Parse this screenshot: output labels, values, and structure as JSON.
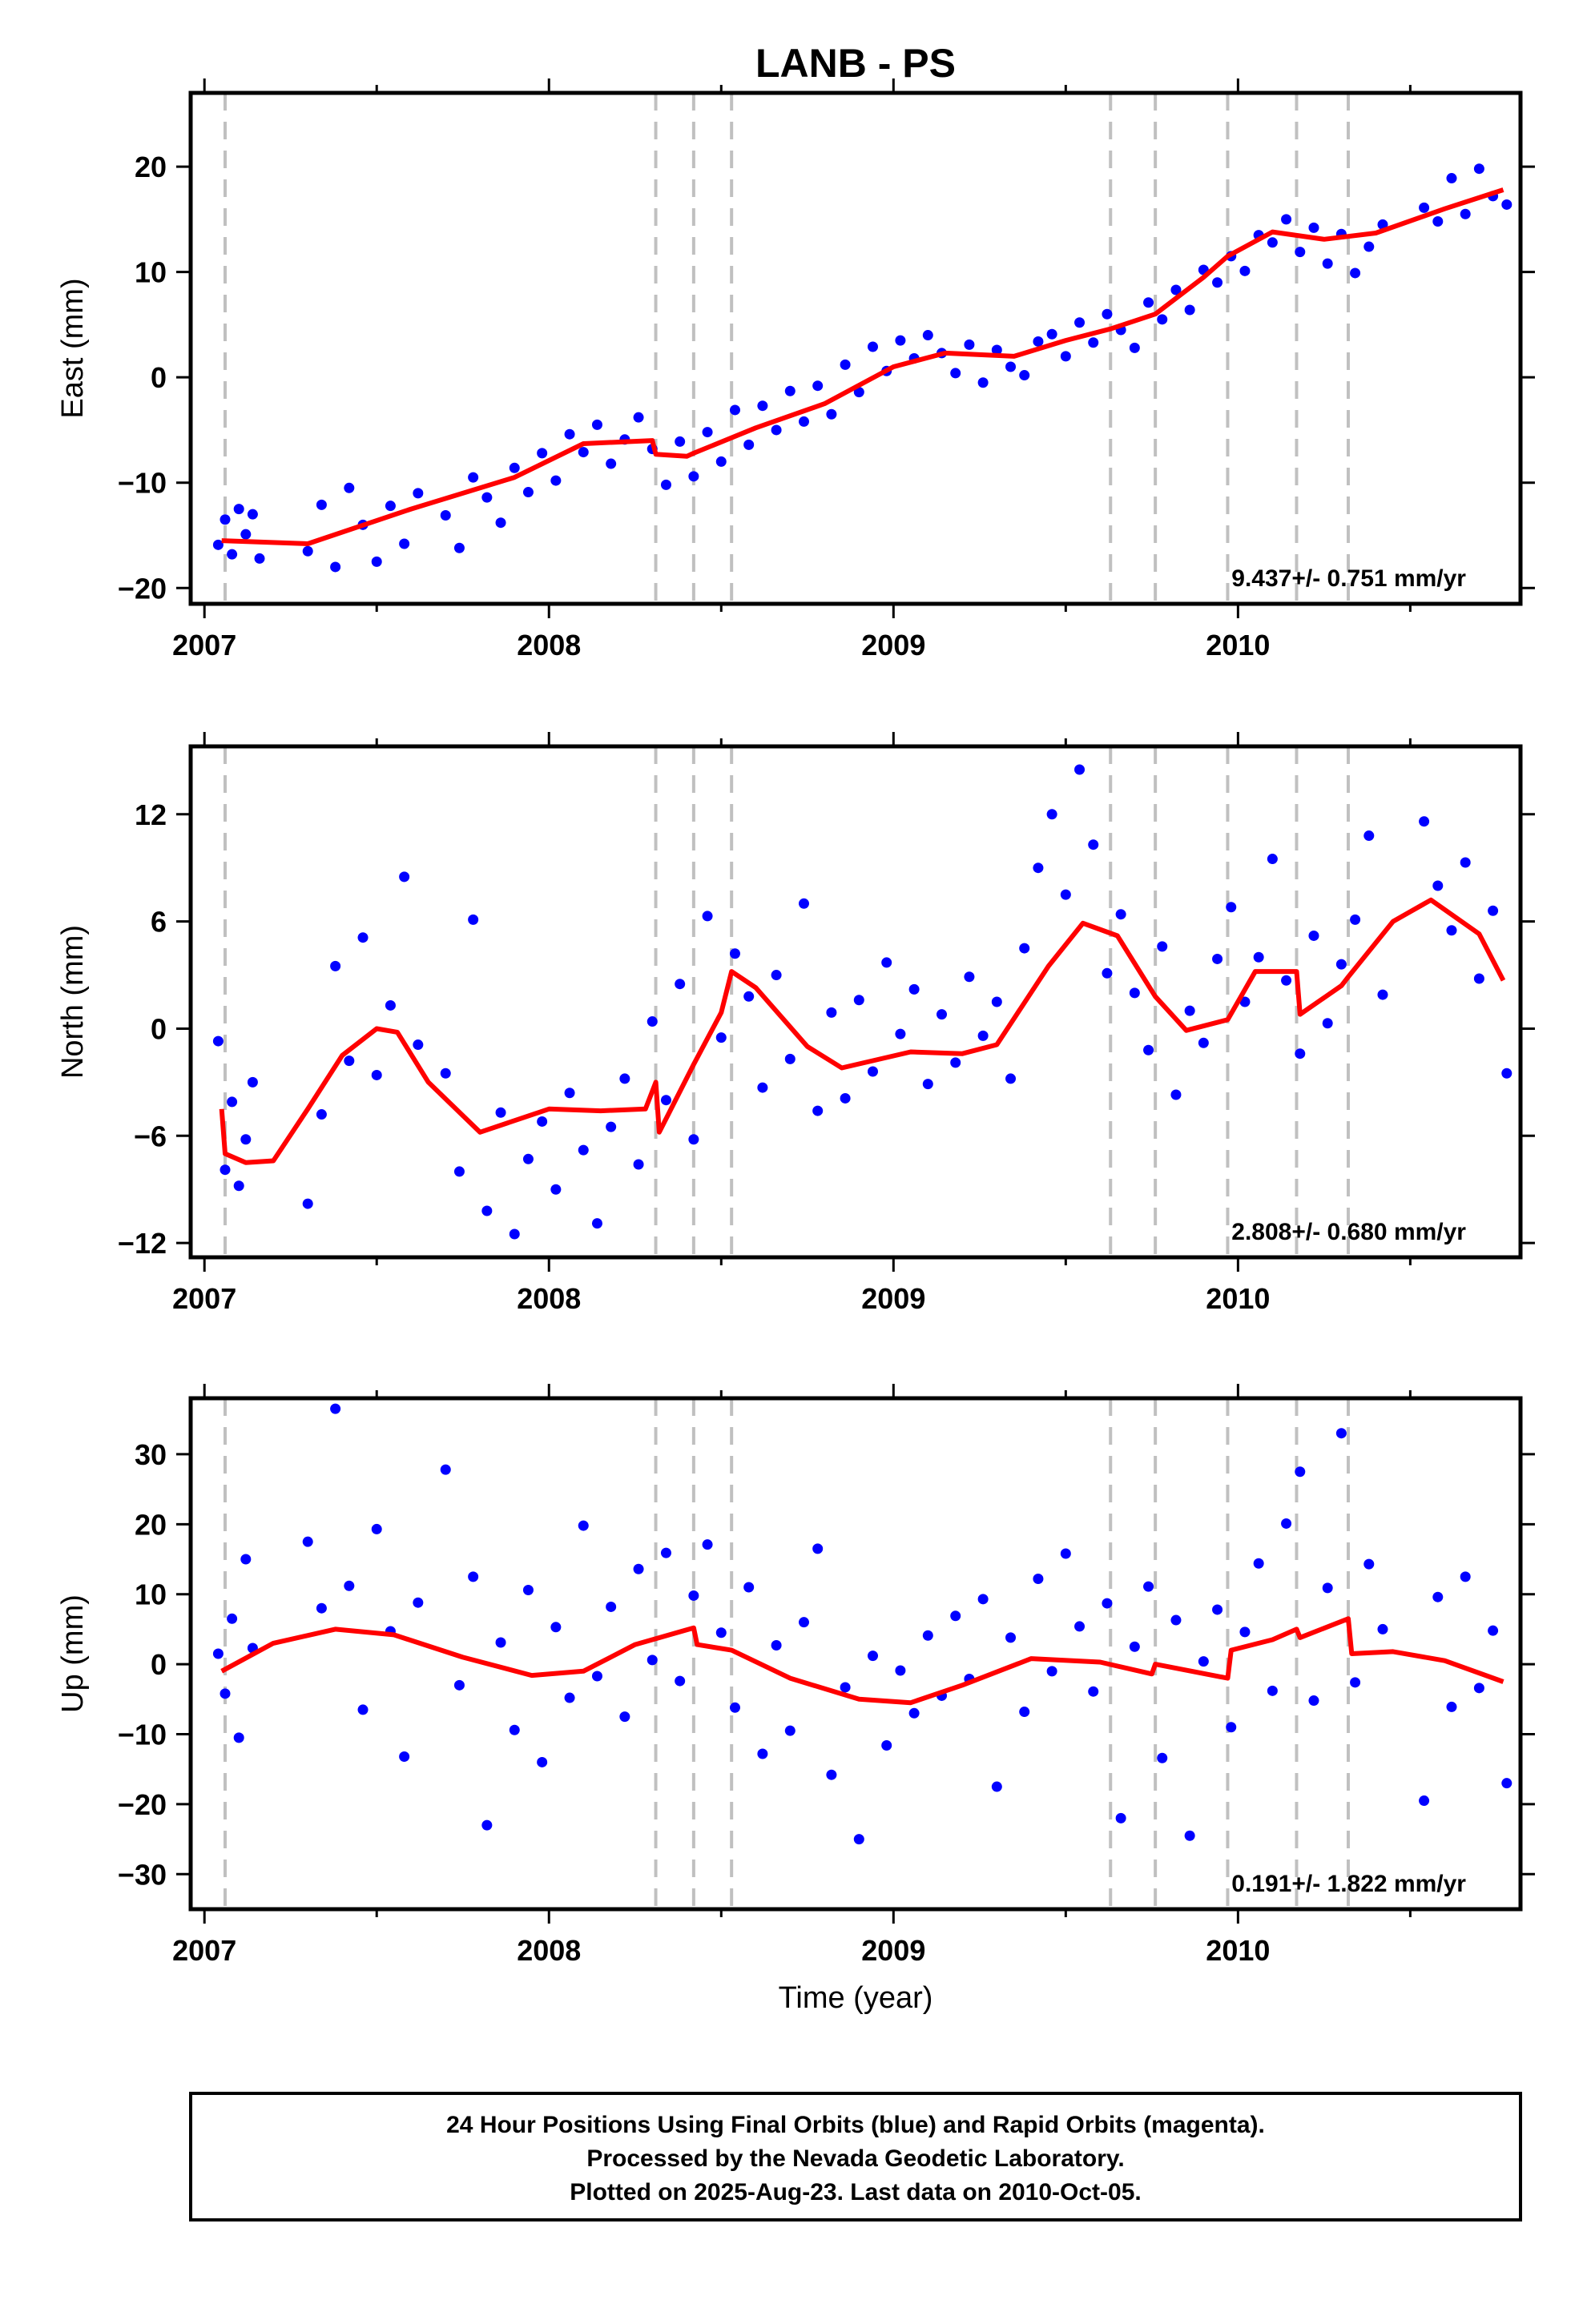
{
  "title": "LANB - PS",
  "xlabel": "Time (year)",
  "x_tick_labels": [
    "2007",
    "2008",
    "2009",
    "2010"
  ],
  "colors": {
    "points": "#0000ff",
    "fit": "#ff0000",
    "event_lines": "#c0c0c0",
    "frame": "#000000"
  },
  "footer": {
    "line1": "24 Hour Positions Using Final Orbits (blue) and Rapid Orbits (magenta).",
    "line2": "Processed by the Nevada Geodetic Laboratory.",
    "line3": "Plotted on 2025-Aug-23. Last data on 2010-Oct-05."
  },
  "chart_data": [
    {
      "type": "scatter",
      "ylabel": "East (mm)",
      "rate": "9.437+/- 0.751 mm/yr",
      "xlim": [
        2006.96,
        2010.82
      ],
      "ylim": [
        -21.5,
        27
      ],
      "yticks": [
        -20,
        -10,
        0,
        10,
        20
      ],
      "ytick_labels": [
        "−20",
        "−10",
        "0",
        "10",
        "20"
      ],
      "event_lines": [
        2007.06,
        2008.31,
        2008.42,
        2008.53,
        2009.63,
        2009.76,
        2009.97,
        2010.17,
        2010.32
      ],
      "fit": {
        "x": [
          2007.05,
          2007.3,
          2007.6,
          2007.9,
          2008.1,
          2008.3,
          2008.31,
          2008.4,
          2008.42,
          2008.6,
          2008.8,
          2009.0,
          2009.15,
          2009.35,
          2009.5,
          2009.63,
          2009.76,
          2009.9,
          2009.97,
          2010.1,
          2010.25,
          2010.4,
          2010.6,
          2010.77
        ],
        "y": [
          -15.5,
          -15.8,
          -12.5,
          -9.5,
          -6.3,
          -6.0,
          -7.3,
          -7.5,
          -7.2,
          -4.8,
          -2.5,
          1.0,
          2.3,
          2.0,
          3.5,
          4.6,
          6.0,
          9.5,
          11.5,
          13.8,
          13.1,
          13.7,
          16.0,
          17.8
        ]
      },
      "points": {
        "x": [
          2007.04,
          2007.06,
          2007.08,
          2007.1,
          2007.12,
          2007.14,
          2007.16,
          2007.3,
          2007.34,
          2007.38,
          2007.42,
          2007.46,
          2007.5,
          2007.54,
          2007.58,
          2007.62,
          2007.7,
          2007.74,
          2007.78,
          2007.82,
          2007.86,
          2007.9,
          2007.94,
          2007.98,
          2008.02,
          2008.06,
          2008.1,
          2008.14,
          2008.18,
          2008.22,
          2008.26,
          2008.3,
          2008.34,
          2008.38,
          2008.42,
          2008.46,
          2008.5,
          2008.54,
          2008.58,
          2008.62,
          2008.66,
          2008.7,
          2008.74,
          2008.78,
          2008.82,
          2008.86,
          2008.9,
          2008.94,
          2008.98,
          2009.02,
          2009.06,
          2009.1,
          2009.14,
          2009.18,
          2009.22,
          2009.26,
          2009.3,
          2009.34,
          2009.38,
          2009.42,
          2009.46,
          2009.5,
          2009.54,
          2009.58,
          2009.62,
          2009.66,
          2009.7,
          2009.74,
          2009.78,
          2009.82,
          2009.86,
          2009.9,
          2009.94,
          2009.98,
          2010.02,
          2010.06,
          2010.1,
          2010.14,
          2010.18,
          2010.22,
          2010.26,
          2010.3,
          2010.34,
          2010.38,
          2010.42,
          2010.54,
          2010.58,
          2010.62,
          2010.66,
          2010.7,
          2010.74,
          2010.78
        ],
        "y": [
          -15.9,
          -13.5,
          -16.8,
          -12.5,
          -14.9,
          -13.0,
          -17.2,
          -16.5,
          -12.1,
          -18.0,
          -10.5,
          -14.0,
          -17.5,
          -12.2,
          -15.8,
          -11.0,
          -13.1,
          -16.2,
          -9.5,
          -11.4,
          -13.8,
          -8.6,
          -10.9,
          -7.2,
          -9.8,
          -5.4,
          -7.1,
          -4.5,
          -8.2,
          -5.9,
          -3.8,
          -6.8,
          -10.2,
          -6.1,
          -9.4,
          -5.2,
          -8.0,
          -3.1,
          -6.4,
          -2.7,
          -5.0,
          -1.3,
          -4.2,
          -0.8,
          -3.5,
          1.2,
          -1.4,
          2.9,
          0.6,
          3.5,
          1.8,
          4.0,
          2.3,
          0.4,
          3.1,
          -0.5,
          2.6,
          1.0,
          0.2,
          3.4,
          4.1,
          2.0,
          5.2,
          3.3,
          6.0,
          4.5,
          2.8,
          7.1,
          5.5,
          8.3,
          6.4,
          10.2,
          9.0,
          11.5,
          10.1,
          13.5,
          12.8,
          15.0,
          11.9,
          14.2,
          10.8,
          13.6,
          9.9,
          12.4,
          14.5,
          16.1,
          14.8,
          18.9,
          15.5,
          19.8,
          17.2,
          16.4
        ]
      }
    },
    {
      "type": "scatter",
      "ylabel": "North (mm)",
      "rate": "2.808+/- 0.680 mm/yr",
      "xlim": [
        2006.96,
        2010.82
      ],
      "ylim": [
        -12.8,
        15.8
      ],
      "yticks": [
        -12,
        -6,
        0,
        6,
        12
      ],
      "ytick_labels": [
        "−12",
        "−6",
        "0",
        "6",
        "12"
      ],
      "event_lines": [
        2007.06,
        2008.31,
        2008.42,
        2008.53,
        2009.63,
        2009.76,
        2009.97,
        2010.17,
        2010.32
      ],
      "fit": {
        "x": [
          2007.05,
          2007.06,
          2007.12,
          2007.2,
          2007.3,
          2007.4,
          2007.5,
          2007.56,
          2007.65,
          2007.8,
          2008.0,
          2008.15,
          2008.28,
          2008.31,
          2008.32,
          2008.42,
          2008.5,
          2008.53,
          2008.6,
          2008.75,
          2008.85,
          2009.05,
          2009.2,
          2009.3,
          2009.45,
          2009.55,
          2009.65,
          2009.76,
          2009.85,
          2009.97,
          2010.05,
          2010.17,
          2010.18,
          2010.3,
          2010.32,
          2010.45,
          2010.56,
          2010.7,
          2010.77
        ],
        "y": [
          -4.5,
          -7.0,
          -7.5,
          -7.4,
          -4.5,
          -1.5,
          0.0,
          -0.2,
          -3.0,
          -5.8,
          -4.5,
          -4.6,
          -4.5,
          -3.0,
          -5.8,
          -2.0,
          0.9,
          3.2,
          2.3,
          -1.0,
          -2.2,
          -1.3,
          -1.4,
          -0.9,
          3.5,
          5.9,
          5.2,
          1.8,
          -0.1,
          0.5,
          3.2,
          3.2,
          0.8,
          2.4,
          2.9,
          6.0,
          7.2,
          5.3,
          2.7
        ]
      },
      "points": {
        "x": [
          2007.04,
          2007.06,
          2007.08,
          2007.1,
          2007.12,
          2007.14,
          2007.3,
          2007.34,
          2007.38,
          2007.42,
          2007.46,
          2007.5,
          2007.54,
          2007.58,
          2007.62,
          2007.7,
          2007.74,
          2007.78,
          2007.82,
          2007.86,
          2007.9,
          2007.94,
          2007.98,
          2008.02,
          2008.06,
          2008.1,
          2008.14,
          2008.18,
          2008.22,
          2008.26,
          2008.3,
          2008.34,
          2008.38,
          2008.42,
          2008.46,
          2008.5,
          2008.54,
          2008.58,
          2008.62,
          2008.66,
          2008.7,
          2008.74,
          2008.78,
          2008.82,
          2008.86,
          2008.9,
          2008.94,
          2008.98,
          2009.02,
          2009.06,
          2009.1,
          2009.14,
          2009.18,
          2009.22,
          2009.26,
          2009.3,
          2009.34,
          2009.38,
          2009.42,
          2009.46,
          2009.5,
          2009.54,
          2009.58,
          2009.62,
          2009.66,
          2009.7,
          2009.74,
          2009.78,
          2009.82,
          2009.86,
          2009.9,
          2009.94,
          2009.98,
          2010.02,
          2010.06,
          2010.1,
          2010.14,
          2010.18,
          2010.22,
          2010.26,
          2010.3,
          2010.34,
          2010.38,
          2010.42,
          2010.54,
          2010.58,
          2010.62,
          2010.66,
          2010.7,
          2010.74,
          2010.78
        ],
        "y": [
          -0.7,
          -7.9,
          -4.1,
          -8.8,
          -6.2,
          -3.0,
          -9.8,
          -4.8,
          3.5,
          -1.8,
          5.1,
          -2.6,
          1.3,
          8.5,
          -0.9,
          -2.5,
          -8.0,
          6.1,
          -10.2,
          -4.7,
          -11.5,
          -7.3,
          -5.2,
          -9.0,
          -3.6,
          -6.8,
          -10.9,
          -5.5,
          -2.8,
          -7.6,
          0.4,
          -4.0,
          2.5,
          -6.2,
          6.3,
          -0.5,
          4.2,
          1.8,
          -3.3,
          3.0,
          -1.7,
          7.0,
          -4.6,
          0.9,
          -3.9,
          1.6,
          -2.4,
          3.7,
          -0.3,
          2.2,
          -3.1,
          0.8,
          -1.9,
          2.9,
          -0.4,
          1.5,
          -2.8,
          4.5,
          9.0,
          12.0,
          7.5,
          14.5,
          10.3,
          3.1,
          6.4,
          2.0,
          -1.2,
          4.6,
          -3.7,
          1.0,
          -0.8,
          3.9,
          6.8,
          1.5,
          4.0,
          9.5,
          2.7,
          -1.4,
          5.2,
          0.3,
          3.6,
          6.1,
          10.8,
          1.9,
          11.6,
          8.0,
          5.5,
          9.3,
          2.8,
          6.6,
          -2.5
        ]
      }
    },
    {
      "type": "scatter",
      "ylabel": "Up (mm)",
      "rate": "0.191+/- 1.822 mm/yr",
      "xlim": [
        2006.96,
        2010.82
      ],
      "ylim": [
        -35,
        38
      ],
      "yticks": [
        -30,
        -20,
        -10,
        0,
        10,
        20,
        30
      ],
      "ytick_labels": [
        "−30",
        "−20",
        "−10",
        "0",
        "10",
        "20",
        "30"
      ],
      "event_lines": [
        2007.06,
        2008.31,
        2008.42,
        2008.53,
        2009.63,
        2009.76,
        2009.97,
        2010.17,
        2010.32
      ],
      "fit": {
        "x": [
          2007.05,
          2007.2,
          2007.38,
          2007.55,
          2007.75,
          2007.95,
          2008.1,
          2008.25,
          2008.42,
          2008.43,
          2008.53,
          2008.7,
          2008.9,
          2009.05,
          2009.2,
          2009.4,
          2009.6,
          2009.75,
          2009.76,
          2009.97,
          2009.98,
          2010.1,
          2010.17,
          2010.18,
          2010.32,
          2010.33,
          2010.45,
          2010.6,
          2010.77
        ],
        "y": [
          -1.0,
          3.0,
          5.0,
          4.2,
          1.0,
          -1.6,
          -1.0,
          2.8,
          5.2,
          2.8,
          2.0,
          -2.0,
          -5.0,
          -5.5,
          -3.0,
          0.8,
          0.3,
          -1.4,
          0.0,
          -2.0,
          2.0,
          3.5,
          5.0,
          3.8,
          6.5,
          1.5,
          1.8,
          0.5,
          -2.5
        ]
      },
      "points": {
        "x": [
          2007.04,
          2007.06,
          2007.08,
          2007.1,
          2007.12,
          2007.14,
          2007.3,
          2007.34,
          2007.38,
          2007.42,
          2007.46,
          2007.5,
          2007.54,
          2007.58,
          2007.62,
          2007.7,
          2007.74,
          2007.78,
          2007.82,
          2007.86,
          2007.9,
          2007.94,
          2007.98,
          2008.02,
          2008.06,
          2008.1,
          2008.14,
          2008.18,
          2008.22,
          2008.26,
          2008.3,
          2008.34,
          2008.38,
          2008.42,
          2008.46,
          2008.5,
          2008.54,
          2008.58,
          2008.62,
          2008.66,
          2008.7,
          2008.74,
          2008.78,
          2008.82,
          2008.86,
          2008.9,
          2008.94,
          2008.98,
          2009.02,
          2009.06,
          2009.1,
          2009.14,
          2009.18,
          2009.22,
          2009.26,
          2009.3,
          2009.34,
          2009.38,
          2009.42,
          2009.46,
          2009.5,
          2009.54,
          2009.58,
          2009.62,
          2009.66,
          2009.7,
          2009.74,
          2009.78,
          2009.82,
          2009.86,
          2009.9,
          2009.94,
          2009.98,
          2010.02,
          2010.06,
          2010.1,
          2010.14,
          2010.18,
          2010.22,
          2010.26,
          2010.3,
          2010.34,
          2010.38,
          2010.42,
          2010.54,
          2010.58,
          2010.62,
          2010.66,
          2010.7,
          2010.74,
          2010.78
        ],
        "y": [
          1.5,
          -4.2,
          6.5,
          -10.5,
          15.0,
          2.3,
          17.5,
          8.0,
          36.5,
          11.2,
          -6.5,
          19.3,
          4.7,
          -13.2,
          8.8,
          27.8,
          -3.0,
          12.5,
          -23.0,
          3.1,
          -9.4,
          10.6,
          -14.0,
          5.3,
          -4.8,
          19.8,
          -1.7,
          8.2,
          -7.5,
          13.6,
          0.6,
          15.9,
          -2.4,
          9.8,
          17.1,
          4.5,
          -6.2,
          11.0,
          -12.8,
          2.7,
          -9.5,
          6.0,
          16.5,
          -15.8,
          -3.3,
          -25.0,
          1.2,
          -11.6,
          -0.9,
          -7.0,
          4.1,
          -4.5,
          6.9,
          -2.1,
          9.3,
          -17.5,
          3.8,
          -6.8,
          12.2,
          -1.0,
          15.8,
          5.4,
          -3.9,
          8.7,
          -22.0,
          2.5,
          11.1,
          -13.4,
          6.3,
          -24.5,
          0.4,
          7.8,
          -9.0,
          4.6,
          14.4,
          -3.8,
          20.1,
          27.5,
          -5.2,
          10.9,
          33.0,
          -2.6,
          14.3,
          5.0,
          -19.5,
          9.6,
          -6.1,
          12.5,
          -3.4,
          4.8,
          -17.0
        ]
      }
    }
  ]
}
